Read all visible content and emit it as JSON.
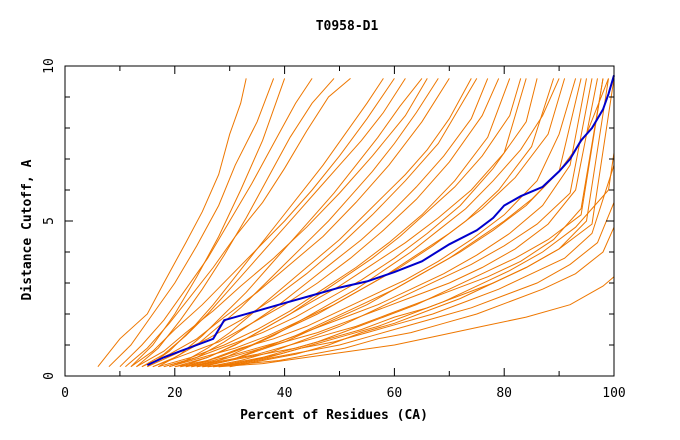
{
  "chart_data": {
    "type": "line",
    "title": "T0958-D1",
    "xlabel": "Percent of Residues (CA)",
    "ylabel": "Distance Cutoff, A",
    "xlim": [
      0,
      100
    ],
    "ylim": [
      0,
      10
    ],
    "x_ticks": [
      0,
      20,
      40,
      60,
      80,
      100
    ],
    "y_ticks": [
      0,
      5,
      10
    ],
    "colors": {
      "background": "#ffffff",
      "axes": "#000000",
      "highlight": "#0000cc",
      "others": "#ee7700"
    },
    "highlight_series": {
      "x": [
        15,
        18,
        21,
        24,
        27,
        28,
        29,
        35,
        40,
        45,
        50,
        55,
        60,
        65,
        70,
        75,
        78,
        80,
        83,
        87,
        90,
        92,
        94,
        96,
        98,
        99,
        100
      ],
      "y": [
        0.35,
        0.6,
        0.8,
        1.0,
        1.2,
        1.5,
        1.8,
        2.1,
        2.35,
        2.6,
        2.85,
        3.05,
        3.35,
        3.7,
        4.25,
        4.7,
        5.1,
        5.5,
        5.8,
        6.1,
        6.6,
        7.0,
        7.6,
        8.0,
        8.6,
        9.1,
        9.7
      ]
    },
    "other_series": [
      {
        "x": [
          6,
          10,
          15,
          18,
          22,
          25,
          28,
          30,
          32,
          33
        ],
        "y": [
          0.3,
          1.2,
          2.0,
          3.0,
          4.3,
          5.3,
          6.5,
          7.8,
          8.8,
          9.6
        ]
      },
      {
        "x": [
          8,
          12,
          16,
          20,
          24,
          28,
          31,
          35,
          38
        ],
        "y": [
          0.3,
          1.0,
          2.0,
          3.0,
          4.2,
          5.5,
          6.8,
          8.2,
          9.6
        ]
      },
      {
        "x": [
          10,
          14,
          18,
          22,
          26,
          30,
          34,
          38,
          42,
          45
        ],
        "y": [
          0.3,
          1.0,
          1.8,
          2.8,
          3.8,
          5.0,
          6.2,
          7.5,
          8.8,
          9.6
        ]
      },
      {
        "x": [
          11,
          15,
          19,
          23,
          27,
          31,
          36,
          40,
          44,
          48,
          52
        ],
        "y": [
          0.3,
          0.9,
          1.7,
          2.6,
          3.5,
          4.5,
          5.6,
          6.7,
          7.9,
          9.0,
          9.6
        ]
      },
      {
        "x": [
          12,
          16,
          20,
          25,
          30,
          35,
          40,
          45,
          50,
          55,
          60
        ],
        "y": [
          0.3,
          0.8,
          1.5,
          2.3,
          3.2,
          4.1,
          5.0,
          6.0,
          7.1,
          8.3,
          9.6
        ]
      },
      {
        "x": [
          13,
          18,
          22,
          27,
          32,
          38,
          44,
          50,
          56,
          62,
          66
        ],
        "y": [
          0.3,
          0.8,
          1.4,
          2.1,
          2.9,
          3.8,
          4.8,
          5.9,
          7.1,
          8.4,
          9.6
        ]
      },
      {
        "x": [
          14,
          19,
          24,
          29,
          35,
          41,
          47,
          53,
          59,
          65,
          70
        ],
        "y": [
          0.3,
          0.7,
          1.2,
          1.9,
          2.7,
          3.6,
          4.5,
          5.6,
          6.8,
          8.2,
          9.6
        ]
      },
      {
        "x": [
          15,
          20,
          26,
          32,
          38,
          44,
          50,
          56,
          62,
          68,
          72,
          75
        ],
        "y": [
          0.3,
          0.7,
          1.2,
          1.8,
          2.5,
          3.3,
          4.2,
          5.2,
          6.3,
          7.5,
          8.7,
          9.6
        ]
      },
      {
        "x": [
          16,
          22,
          28,
          34,
          40,
          46,
          52,
          58,
          64,
          70,
          76,
          79
        ],
        "y": [
          0.3,
          0.7,
          1.1,
          1.7,
          2.3,
          3.0,
          3.8,
          4.7,
          5.7,
          6.9,
          8.4,
          9.6
        ]
      },
      {
        "x": [
          17,
          23,
          29,
          35,
          41,
          47,
          53,
          59,
          65,
          71,
          77,
          81
        ],
        "y": [
          0.3,
          0.6,
          1.0,
          1.5,
          2.1,
          2.8,
          3.5,
          4.3,
          5.2,
          6.3,
          7.7,
          9.6
        ]
      },
      {
        "x": [
          18,
          24,
          30,
          36,
          42,
          48,
          54,
          60,
          66,
          72,
          78,
          84,
          86
        ],
        "y": [
          0.3,
          0.6,
          1.0,
          1.4,
          1.9,
          2.5,
          3.1,
          3.8,
          4.6,
          5.5,
          6.7,
          8.2,
          9.6
        ]
      },
      {
        "x": [
          19,
          25,
          31,
          37,
          43,
          49,
          55,
          61,
          67,
          73,
          79,
          85,
          89
        ],
        "y": [
          0.3,
          0.6,
          0.9,
          1.3,
          1.8,
          2.3,
          2.9,
          3.5,
          4.2,
          5.0,
          6.0,
          7.4,
          9.6
        ]
      },
      {
        "x": [
          20,
          26,
          32,
          38,
          44,
          50,
          56,
          62,
          68,
          74,
          80,
          86,
          90,
          93
        ],
        "y": [
          0.3,
          0.5,
          0.9,
          1.2,
          1.6,
          2.1,
          2.6,
          3.1,
          3.7,
          4.4,
          5.2,
          6.3,
          7.8,
          9.6
        ]
      },
      {
        "x": [
          21,
          27,
          33,
          39,
          45,
          51,
          57,
          63,
          69,
          75,
          81,
          87,
          92,
          95
        ],
        "y": [
          0.3,
          0.5,
          0.8,
          1.1,
          1.5,
          1.9,
          2.3,
          2.8,
          3.3,
          3.9,
          4.6,
          5.5,
          6.8,
          9.6
        ]
      },
      {
        "x": [
          22,
          28,
          34,
          40,
          46,
          52,
          58,
          64,
          70,
          76,
          82,
          88,
          93,
          97
        ],
        "y": [
          0.3,
          0.5,
          0.8,
          1.1,
          1.4,
          1.8,
          2.2,
          2.6,
          3.0,
          3.5,
          4.1,
          4.9,
          6.0,
          9.6
        ]
      },
      {
        "x": [
          23,
          29,
          35,
          41,
          47,
          53,
          59,
          65,
          71,
          77,
          83,
          89,
          94,
          98
        ],
        "y": [
          0.3,
          0.5,
          0.7,
          1.0,
          1.3,
          1.6,
          2.0,
          2.4,
          2.8,
          3.2,
          3.7,
          4.4,
          5.4,
          9.6
        ]
      },
      {
        "x": [
          24,
          30,
          36,
          42,
          48,
          54,
          60,
          66,
          72,
          78,
          84,
          90,
          95,
          99
        ],
        "y": [
          0.3,
          0.5,
          0.7,
          0.9,
          1.2,
          1.5,
          1.9,
          2.2,
          2.6,
          3.0,
          3.5,
          4.1,
          5.0,
          9.6
        ]
      },
      {
        "x": [
          25,
          31,
          37,
          43,
          49,
          55,
          61,
          67,
          73,
          79,
          85,
          91,
          96,
          100
        ],
        "y": [
          0.3,
          0.4,
          0.6,
          0.9,
          1.1,
          1.4,
          1.7,
          2.0,
          2.4,
          2.8,
          3.3,
          3.8,
          4.6,
          6.8
        ]
      },
      {
        "x": [
          26,
          32,
          38,
          44,
          50,
          56,
          62,
          68,
          74,
          80,
          86,
          92,
          97,
          100
        ],
        "y": [
          0.3,
          0.4,
          0.6,
          0.8,
          1.0,
          1.3,
          1.6,
          1.9,
          2.2,
          2.6,
          3.0,
          3.6,
          4.3,
          5.6
        ]
      },
      {
        "x": [
          27,
          33,
          39,
          45,
          51,
          57,
          63,
          69,
          75,
          81,
          87,
          93,
          98,
          100
        ],
        "y": [
          0.3,
          0.4,
          0.5,
          0.7,
          0.9,
          1.2,
          1.4,
          1.7,
          2.0,
          2.4,
          2.8,
          3.3,
          4.0,
          4.8
        ]
      },
      {
        "x": [
          28,
          36,
          44,
          52,
          60,
          68,
          76,
          84,
          92,
          98,
          100
        ],
        "y": [
          0.3,
          0.4,
          0.6,
          0.8,
          1.0,
          1.3,
          1.6,
          1.9,
          2.3,
          2.9,
          3.2
        ]
      },
      {
        "x": [
          14,
          18,
          22,
          26,
          30,
          34,
          38,
          42,
          46,
          50,
          54,
          58,
          62
        ],
        "y": [
          0.3,
          0.7,
          1.3,
          2.0,
          2.8,
          3.6,
          4.4,
          5.2,
          6.0,
          6.8,
          7.6,
          8.5,
          9.6
        ]
      },
      {
        "x": [
          16,
          20,
          24,
          28,
          32,
          36,
          40,
          44,
          48,
          52,
          56,
          60,
          64,
          68
        ],
        "y": [
          0.3,
          0.6,
          1.0,
          1.6,
          2.2,
          2.9,
          3.6,
          4.3,
          5.0,
          5.8,
          6.6,
          7.5,
          8.5,
          9.6
        ]
      },
      {
        "x": [
          18,
          22,
          26,
          30,
          34,
          38,
          42,
          46,
          50,
          54,
          58,
          62,
          66,
          70,
          74
        ],
        "y": [
          0.3,
          0.5,
          0.9,
          1.4,
          2.0,
          2.6,
          3.2,
          3.8,
          4.4,
          5.1,
          5.8,
          6.5,
          7.3,
          8.3,
          9.6
        ]
      },
      {
        "x": [
          20,
          26,
          32,
          38,
          44,
          50,
          56,
          62,
          68,
          74,
          80,
          84
        ],
        "y": [
          0.3,
          0.6,
          1.1,
          1.7,
          2.3,
          2.9,
          3.6,
          4.3,
          5.1,
          6.0,
          7.2,
          9.6
        ]
      },
      {
        "x": [
          22,
          28,
          34,
          40,
          46,
          52,
          58,
          64,
          70,
          76,
          82,
          88,
          91
        ],
        "y": [
          0.3,
          0.6,
          1.0,
          1.5,
          2.0,
          2.6,
          3.2,
          3.9,
          4.6,
          5.4,
          6.4,
          7.8,
          9.6
        ]
      },
      {
        "x": [
          24,
          30,
          36,
          42,
          48,
          54,
          60,
          66,
          72,
          78,
          84,
          90,
          94
        ],
        "y": [
          0.3,
          0.5,
          0.9,
          1.3,
          1.8,
          2.3,
          2.8,
          3.4,
          4.0,
          4.7,
          5.5,
          6.6,
          9.6
        ]
      },
      {
        "x": [
          26,
          32,
          38,
          44,
          50,
          56,
          62,
          68,
          74,
          80,
          86,
          92,
          96
        ],
        "y": [
          0.3,
          0.5,
          0.8,
          1.2,
          1.6,
          2.1,
          2.6,
          3.1,
          3.6,
          4.2,
          4.9,
          5.9,
          9.6
        ]
      },
      {
        "x": [
          28,
          34,
          40,
          46,
          52,
          58,
          64,
          70,
          76,
          82,
          88,
          94,
          98
        ],
        "y": [
          0.3,
          0.5,
          0.8,
          1.1,
          1.5,
          1.9,
          2.3,
          2.8,
          3.3,
          3.8,
          4.4,
          5.2,
          9.6
        ]
      },
      {
        "x": [
          30,
          36,
          42,
          48,
          54,
          60,
          66,
          72,
          78,
          84,
          90,
          96,
          100
        ],
        "y": [
          0.3,
          0.5,
          0.7,
          1.0,
          1.4,
          1.7,
          2.1,
          2.5,
          3.0,
          3.5,
          4.1,
          4.9,
          9.6
        ]
      },
      {
        "x": [
          12,
          16,
          20,
          24,
          28,
          32,
          36,
          40
        ],
        "y": [
          0.3,
          1.0,
          2.0,
          3.2,
          4.5,
          6.0,
          7.6,
          9.6
        ]
      },
      {
        "x": [
          13,
          17,
          21,
          25,
          29,
          33,
          37,
          41,
          45,
          49
        ],
        "y": [
          0.3,
          0.9,
          1.8,
          2.8,
          3.9,
          5.1,
          6.4,
          7.7,
          8.8,
          9.6
        ]
      },
      {
        "x": [
          15,
          19,
          23,
          27,
          31,
          35,
          39,
          43,
          47,
          51,
          55,
          58
        ],
        "y": [
          0.3,
          0.8,
          1.5,
          2.3,
          3.2,
          4.1,
          5.0,
          5.9,
          6.8,
          7.8,
          8.8,
          9.6
        ]
      },
      {
        "x": [
          17,
          21,
          25,
          29,
          33,
          37,
          41,
          45,
          49,
          53,
          57,
          61,
          65
        ],
        "y": [
          0.3,
          0.7,
          1.3,
          2.0,
          2.7,
          3.5,
          4.3,
          5.1,
          5.9,
          6.8,
          7.7,
          8.7,
          9.6
        ]
      },
      {
        "x": [
          19,
          24,
          29,
          34,
          39,
          44,
          49,
          54,
          59,
          64,
          69,
          74,
          77
        ],
        "y": [
          0.3,
          0.6,
          1.1,
          1.7,
          2.3,
          3.0,
          3.7,
          4.4,
          5.2,
          6.1,
          7.1,
          8.3,
          9.6
        ]
      },
      {
        "x": [
          21,
          26,
          31,
          36,
          41,
          46,
          51,
          56,
          61,
          66,
          71,
          76,
          81,
          83
        ],
        "y": [
          0.3,
          0.6,
          1.0,
          1.5,
          2.0,
          2.6,
          3.2,
          3.8,
          4.5,
          5.3,
          6.1,
          7.1,
          8.4,
          9.6
        ]
      },
      {
        "x": [
          23,
          28,
          33,
          38,
          43,
          48,
          53,
          58,
          63,
          68,
          73,
          78,
          83,
          87,
          90
        ],
        "y": [
          0.3,
          0.5,
          0.9,
          1.3,
          1.8,
          2.3,
          2.8,
          3.4,
          4.0,
          4.7,
          5.4,
          6.3,
          7.3,
          8.4,
          9.6
        ]
      },
      {
        "x": [
          25,
          30,
          35,
          40,
          45,
          50,
          55,
          60,
          65,
          70,
          75,
          80,
          85,
          90,
          95,
          99
        ],
        "y": [
          0.3,
          0.5,
          0.8,
          1.1,
          1.5,
          1.9,
          2.3,
          2.8,
          3.3,
          3.8,
          4.4,
          5.0,
          5.7,
          6.6,
          7.8,
          9.6
        ]
      },
      {
        "x": [
          27,
          33,
          39,
          45,
          51,
          57,
          63,
          69,
          75,
          81,
          87,
          93,
          99,
          100
        ],
        "y": [
          0.3,
          0.5,
          0.7,
          1.0,
          1.3,
          1.6,
          2.0,
          2.4,
          2.9,
          3.4,
          4.0,
          4.8,
          6.0,
          7.2
        ]
      }
    ]
  }
}
